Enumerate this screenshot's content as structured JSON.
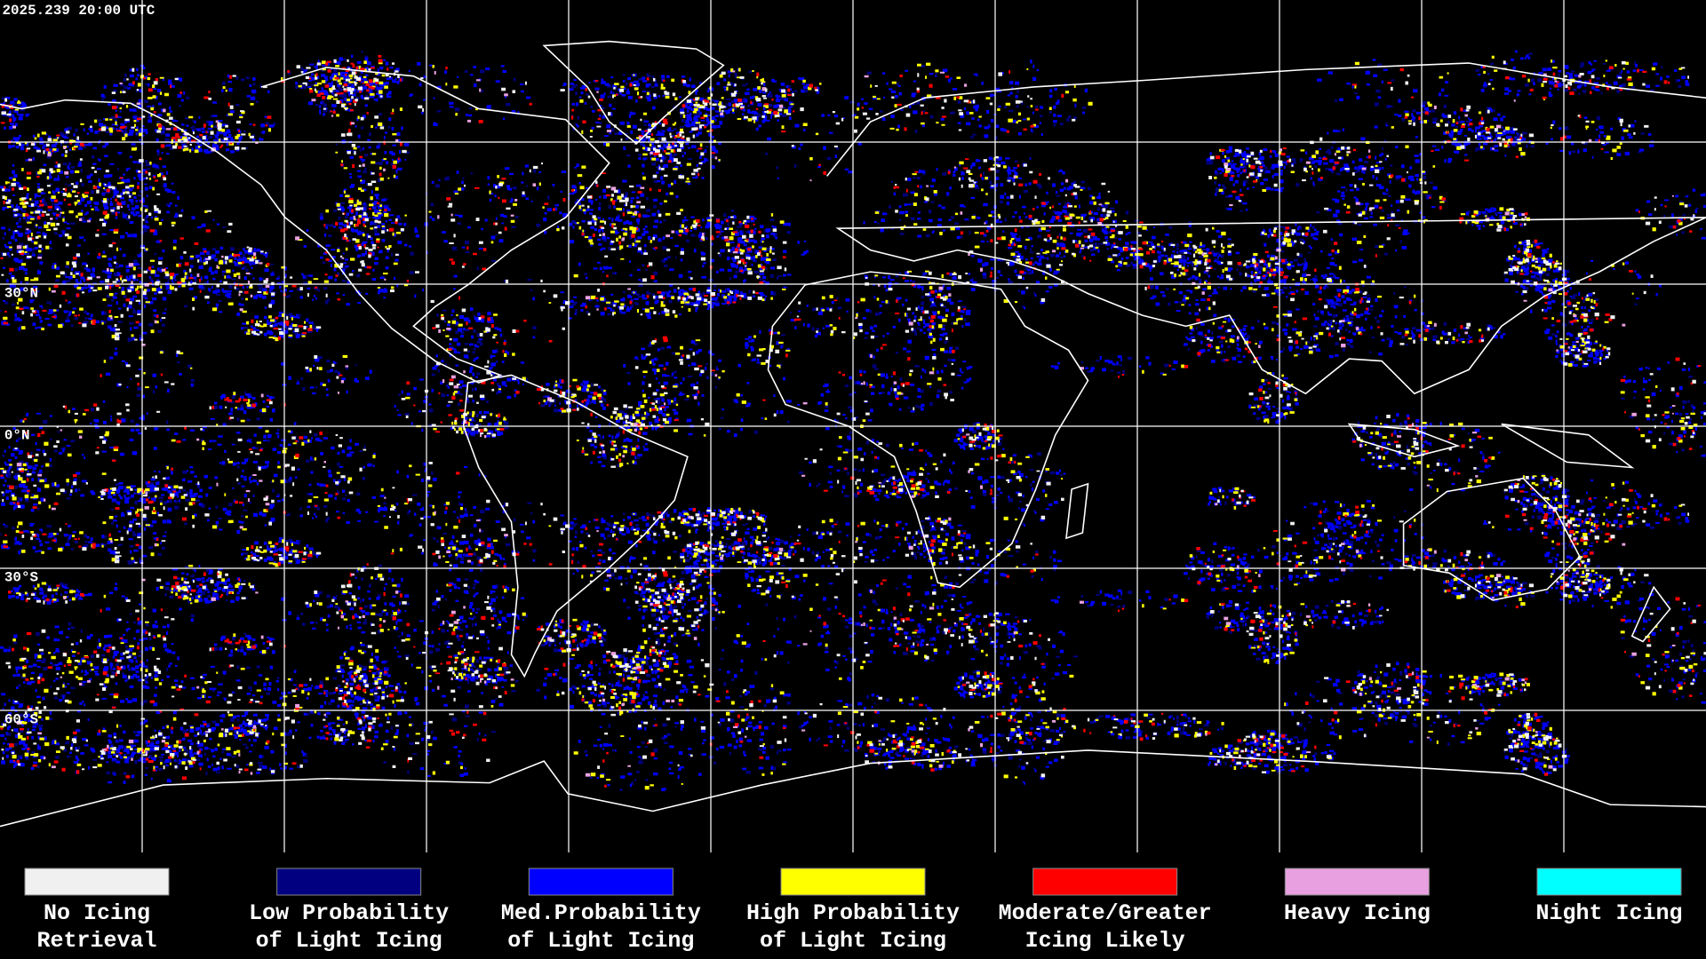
{
  "header": {
    "timestamp": "2025.239 20:00 UTC"
  },
  "map": {
    "latitude_labels": [
      "30°N",
      "0°N",
      "30°S",
      "60°S"
    ]
  },
  "legend": {
    "items": [
      {
        "label": [
          "No Icing",
          "Retrieval"
        ],
        "color": "#f0f0f0"
      },
      {
        "label": [
          "Low Probability",
          "of Light Icing"
        ],
        "color": "#000080"
      },
      {
        "label": [
          "Med.Probability",
          "of Light Icing"
        ],
        "color": "#0000ff"
      },
      {
        "label": [
          "High Probability",
          "of Light Icing"
        ],
        "color": "#ffff00"
      },
      {
        "label": [
          "Moderate/Greater",
          "Icing Likely"
        ],
        "color": "#ff0000"
      },
      {
        "label": [
          "Heavy Icing"
        ],
        "color": "#e8a0e0"
      },
      {
        "label": [
          "Night Icing"
        ],
        "color": "#00ffff"
      }
    ]
  }
}
